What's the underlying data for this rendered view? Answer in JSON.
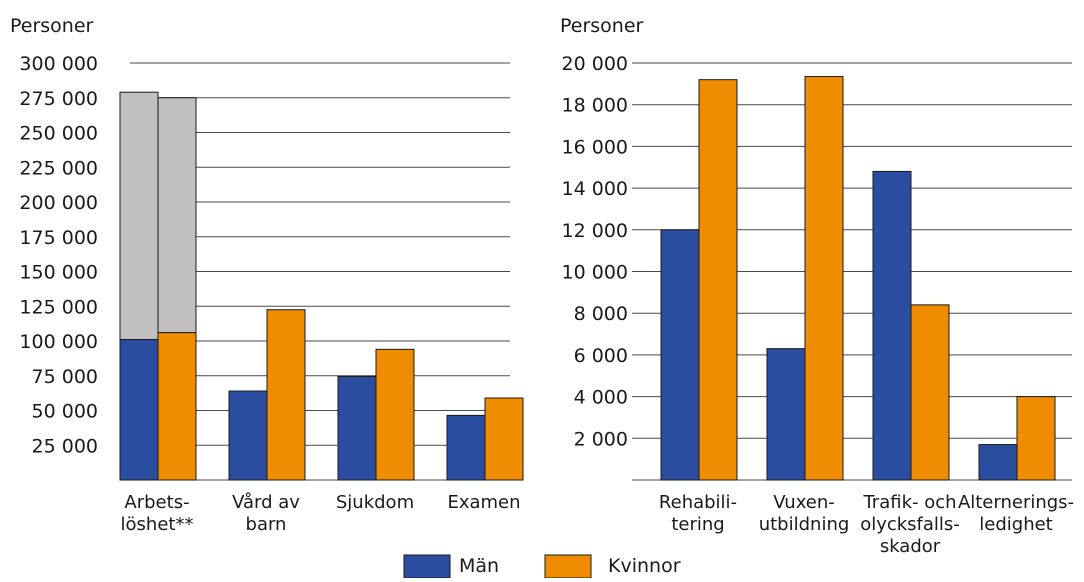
{
  "colors": {
    "man": "#2b4da0",
    "woman": "#f08c00",
    "grey": "#c0c0c0",
    "grid": "#4a4a4a"
  },
  "legend": [
    {
      "label": "Män",
      "color": "#2b4da0"
    },
    {
      "label": "Kvinnor",
      "color": "#f08c00"
    }
  ],
  "chart_data": [
    {
      "type": "bar",
      "ylabel": "Personer",
      "ylim": [
        0,
        300000
      ],
      "yticks": [
        "300 000",
        "275 000",
        "250 000",
        "225 000",
        "200 000",
        "175 000",
        "150 000",
        "125 000",
        "100 000",
        "75 000",
        "50 000",
        "25 000"
      ],
      "categories": [
        [
          "Arbets-",
          "löshet**"
        ],
        [
          "Vård av",
          "barn"
        ],
        [
          "Sjukdom"
        ],
        [
          "Examen"
        ]
      ],
      "series": [
        {
          "name": "Män",
          "values": [
            101000,
            64000,
            74500,
            46500
          ],
          "stack_top": [
            279000,
            null,
            null,
            null
          ]
        },
        {
          "name": "Kvinnor",
          "values": [
            106000,
            122500,
            94000,
            59000
          ],
          "stack_top": [
            275000,
            null,
            null,
            null
          ]
        }
      ]
    },
    {
      "type": "bar",
      "ylabel": "Personer",
      "ylim": [
        0,
        20000
      ],
      "yticks": [
        "20 000",
        "18 000",
        "16 000",
        "14 000",
        "12 000",
        "10 000",
        "8 000",
        "6 000",
        "4 000",
        "2 000"
      ],
      "categories": [
        [
          "Rehabili-",
          "tering"
        ],
        [
          "Vuxen-",
          "utbildning"
        ],
        [
          "Trafik- och",
          "olycksfalls-",
          "skador"
        ],
        [
          "Alternerings-",
          "ledighet"
        ]
      ],
      "series": [
        {
          "name": "Män",
          "values": [
            12000,
            6300,
            14800,
            1700
          ]
        },
        {
          "name": "Kvinnor",
          "values": [
            19200,
            19350,
            8400,
            4000
          ]
        }
      ]
    }
  ]
}
